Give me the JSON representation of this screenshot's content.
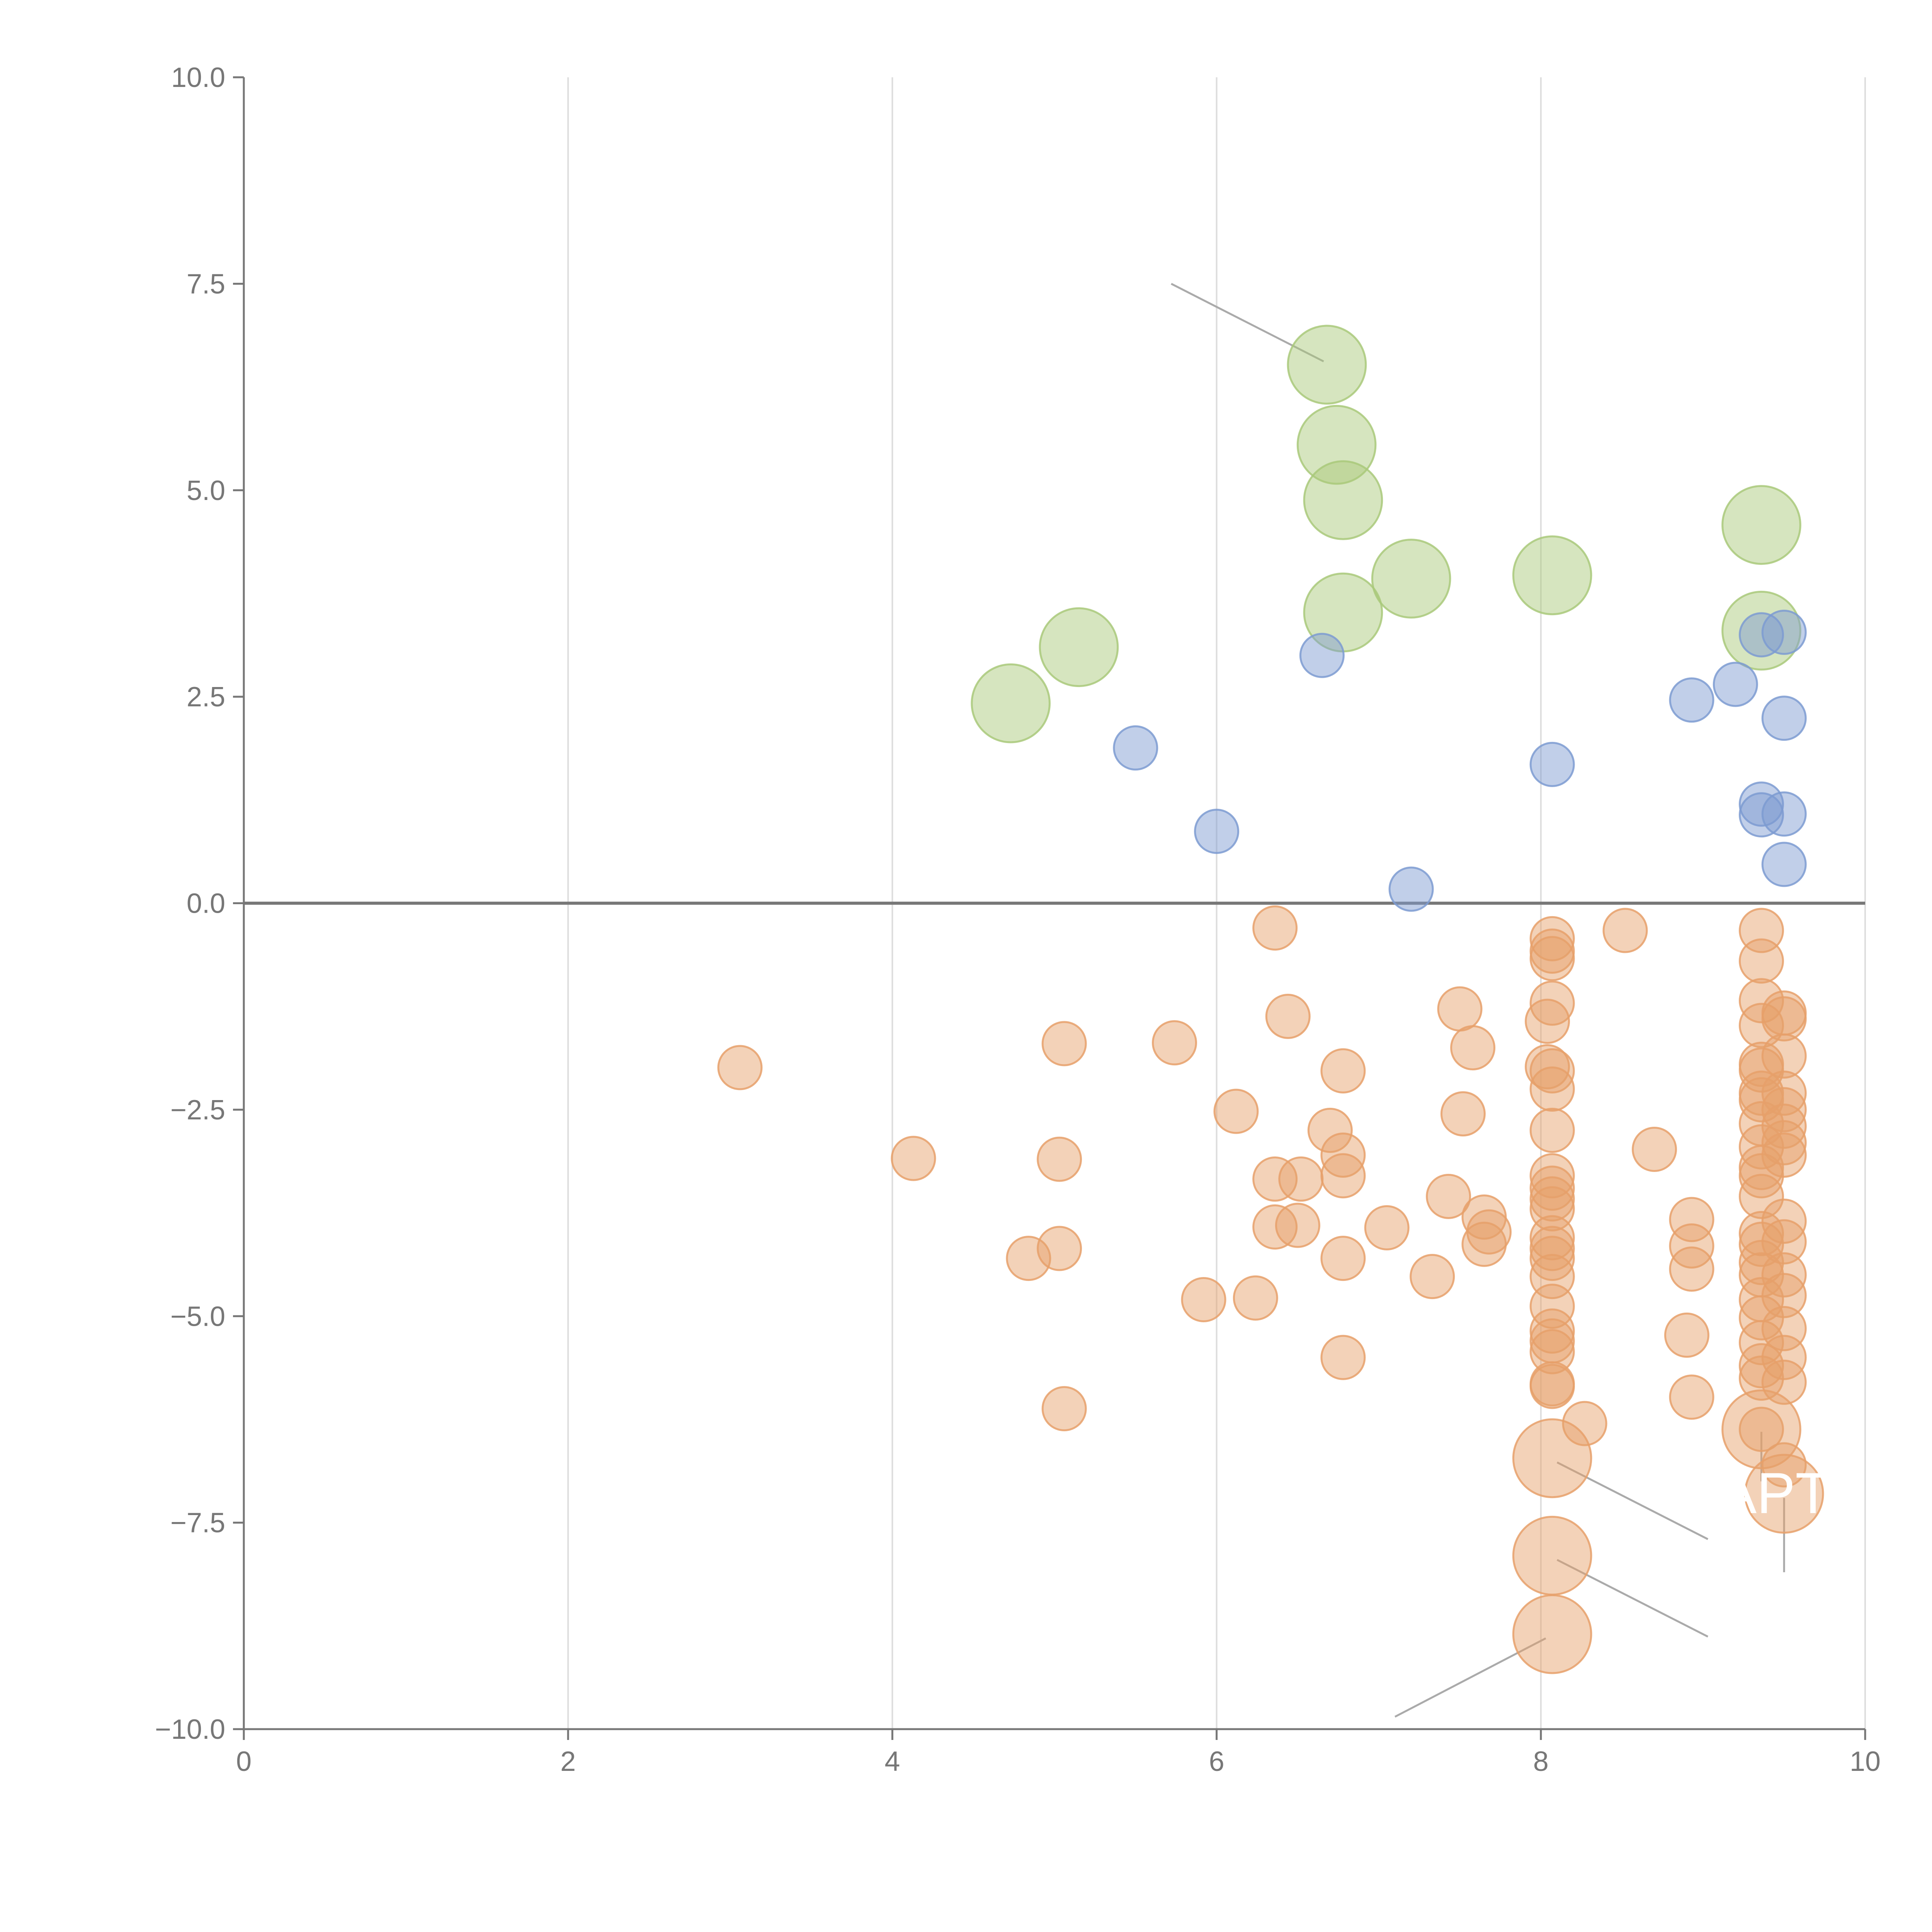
{
  "chart_data": {
    "type": "scatter",
    "title": "",
    "xlabel": "",
    "ylabel": "",
    "xlim": [
      0,
      10
    ],
    "ylim": [
      -10,
      10
    ],
    "grid": "vertical",
    "x_ticks": [
      "0",
      "2",
      "4",
      "6",
      "8",
      "10"
    ],
    "y_ticks": [
      "10.0",
      "7.5",
      "5.0",
      "2.5",
      "0.0",
      "−2.5",
      "−5.0",
      "−7.5",
      "−10.0"
    ],
    "series": [
      {
        "name": "green",
        "color": "#a9c97a",
        "size": 1.8,
        "points": [
          [
            6.68,
            6.52
          ],
          [
            6.74,
            5.55
          ],
          [
            6.78,
            4.88
          ],
          [
            7.2,
            3.93
          ],
          [
            6.78,
            3.52
          ],
          [
            8.07,
            3.97
          ],
          [
            9.36,
            4.58
          ],
          [
            9.36,
            3.3
          ],
          [
            5.15,
            3.1
          ],
          [
            4.73,
            2.42
          ]
        ]
      },
      {
        "name": "blue",
        "color": "#7d9bd1",
        "size": 1.0,
        "points": [
          [
            6.65,
            3.0
          ],
          [
            5.5,
            1.88
          ],
          [
            6.0,
            0.87
          ],
          [
            7.2,
            0.17
          ],
          [
            8.07,
            1.68
          ],
          [
            8.93,
            2.46
          ],
          [
            9.2,
            2.65
          ],
          [
            9.36,
            3.25
          ],
          [
            9.5,
            3.28
          ],
          [
            9.5,
            2.24
          ],
          [
            9.36,
            1.2
          ],
          [
            9.36,
            1.07
          ],
          [
            9.5,
            1.08
          ],
          [
            9.5,
            0.47
          ]
        ]
      },
      {
        "name": "orange",
        "color": "#e6a06a",
        "size": 1.0,
        "points": [
          [
            3.06,
            -1.99
          ],
          [
            4.13,
            -3.09
          ],
          [
            4.84,
            -4.3
          ],
          [
            5.03,
            -3.1
          ],
          [
            5.06,
            -1.7
          ],
          [
            5.03,
            -4.18
          ],
          [
            5.06,
            -6.12
          ],
          [
            5.74,
            -1.69
          ],
          [
            5.92,
            -4.8
          ],
          [
            6.12,
            -2.52
          ],
          [
            6.24,
            -4.78
          ],
          [
            6.36,
            -0.3
          ],
          [
            6.36,
            -3.34
          ],
          [
            6.36,
            -3.92
          ],
          [
            6.44,
            -1.37
          ],
          [
            6.52,
            -3.34
          ],
          [
            6.5,
            -3.9
          ],
          [
            6.7,
            -2.75
          ],
          [
            6.78,
            -2.03
          ],
          [
            6.78,
            -3.05
          ],
          [
            6.78,
            -3.3
          ],
          [
            6.78,
            -4.3
          ],
          [
            6.78,
            -5.5
          ],
          [
            7.05,
            -3.93
          ],
          [
            7.33,
            -4.52
          ],
          [
            7.43,
            -3.55
          ],
          [
            7.5,
            -1.28
          ],
          [
            7.52,
            -2.55
          ],
          [
            7.58,
            -1.75
          ],
          [
            7.65,
            -3.8
          ],
          [
            7.65,
            -4.13
          ],
          [
            7.68,
            -3.98
          ],
          [
            8.07,
            -0.43
          ],
          [
            8.07,
            -0.58
          ],
          [
            8.07,
            -0.67
          ],
          [
            8.07,
            -1.21
          ],
          [
            8.04,
            -1.43
          ],
          [
            8.04,
            -1.98
          ],
          [
            8.07,
            -2.03
          ],
          [
            8.07,
            -2.25
          ],
          [
            8.07,
            -2.75
          ],
          [
            8.07,
            -3.3
          ],
          [
            8.07,
            -3.45
          ],
          [
            8.07,
            -3.58
          ],
          [
            8.07,
            -3.7
          ],
          [
            8.07,
            -4.05
          ],
          [
            8.07,
            -4.18
          ],
          [
            8.07,
            -4.3
          ],
          [
            8.07,
            -4.52
          ],
          [
            8.07,
            -4.88
          ],
          [
            8.07,
            -5.18
          ],
          [
            8.07,
            -5.3
          ],
          [
            8.07,
            -5.43
          ],
          [
            8.07,
            -5.82
          ],
          [
            8.07,
            -5.85
          ],
          [
            8.27,
            -6.3
          ],
          [
            8.52,
            -0.33
          ],
          [
            8.7,
            -2.98
          ],
          [
            8.93,
            -3.83
          ],
          [
            8.93,
            -4.15
          ],
          [
            8.93,
            -4.43
          ],
          [
            8.9,
            -5.23
          ],
          [
            8.93,
            -5.98
          ],
          [
            9.36,
            -0.33
          ],
          [
            9.36,
            -0.7
          ],
          [
            9.36,
            -1.18
          ],
          [
            9.36,
            -1.48
          ],
          [
            9.36,
            -1.95
          ],
          [
            9.36,
            -2.02
          ],
          [
            9.36,
            -2.3
          ],
          [
            9.36,
            -2.38
          ],
          [
            9.36,
            -2.67
          ],
          [
            9.36,
            -2.95
          ],
          [
            9.36,
            -3.2
          ],
          [
            9.36,
            -3.3
          ],
          [
            9.36,
            -3.55
          ],
          [
            9.36,
            -4.0
          ],
          [
            9.36,
            -4.13
          ],
          [
            9.36,
            -4.35
          ],
          [
            9.36,
            -4.5
          ],
          [
            9.36,
            -4.8
          ],
          [
            9.36,
            -5.02
          ],
          [
            9.36,
            -5.32
          ],
          [
            9.36,
            -5.6
          ],
          [
            9.36,
            -5.75
          ],
          [
            9.36,
            -6.37
          ],
          [
            9.5,
            -1.33
          ],
          [
            9.5,
            -1.4
          ],
          [
            9.5,
            -1.85
          ],
          [
            9.5,
            -2.3
          ],
          [
            9.5,
            -2.5
          ],
          [
            9.5,
            -2.7
          ],
          [
            9.5,
            -2.9
          ],
          [
            9.5,
            -3.05
          ],
          [
            9.5,
            -3.85
          ],
          [
            9.5,
            -4.1
          ],
          [
            9.5,
            -4.5
          ],
          [
            9.5,
            -4.75
          ],
          [
            9.5,
            -5.15
          ],
          [
            9.5,
            -5.5
          ],
          [
            9.5,
            -5.8
          ],
          [
            9.5,
            -6.8
          ]
        ]
      },
      {
        "name": "orange-large",
        "color": "#e6a06a",
        "size": 1.8,
        "points": [
          [
            8.07,
            -6.72
          ],
          [
            8.07,
            -7.9
          ],
          [
            8.07,
            -8.85
          ],
          [
            9.36,
            -6.37
          ],
          [
            9.5,
            -7.15
          ]
        ]
      }
    ],
    "annotations": [
      {
        "text": "APT",
        "x": 9.44,
        "y": -7.15
      }
    ],
    "leader_lines": [
      [
        [
          5.72,
          7.5
        ],
        [
          6.66,
          6.56
        ]
      ],
      [
        [
          8.1,
          -6.77
        ],
        [
          9.03,
          -7.7
        ]
      ],
      [
        [
          8.1,
          -7.95
        ],
        [
          9.03,
          -8.88
        ]
      ],
      [
        [
          7.1,
          -9.85
        ],
        [
          8.03,
          -8.9
        ]
      ],
      [
        [
          9.36,
          -6.4
        ],
        [
          9.36,
          -7.0
        ]
      ],
      [
        [
          9.5,
          -7.2
        ],
        [
          9.5,
          -8.1
        ]
      ]
    ]
  }
}
